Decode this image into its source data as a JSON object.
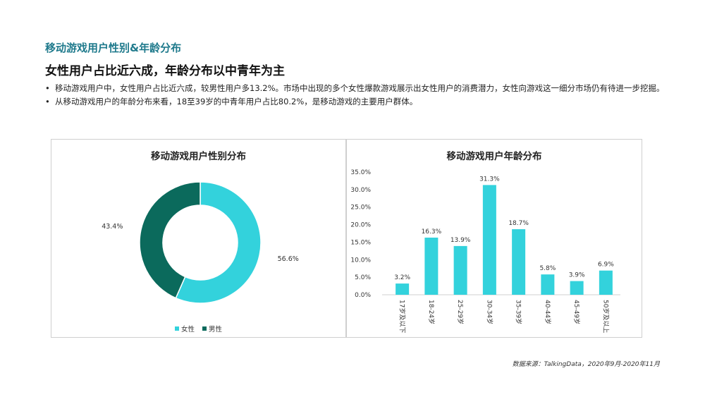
{
  "section_title": "移动游戏用户性别&年龄分布",
  "headline": "女性用户占比近六成，年龄分布以中青年为主",
  "bullets": [
    "移动游戏用户中，女性用户占比近六成，较男性用户多13.2%。市场中出现的多个女性爆款游戏展示出女性用户的消费潜力，女性向游戏这一细分市场仍有待进一步挖掘。",
    "从移动游戏用户的年龄分布来看，18至39岁的中青年用户占比80.2%，是移动游戏的主要用户群体。"
  ],
  "source": "数据来源：TalkingData，2020年9月-2020年11月",
  "chart_data": [
    {
      "type": "pie",
      "title": "移动游戏用户性别分布",
      "categories": [
        "女性",
        "男性"
      ],
      "values": [
        56.6,
        43.4
      ],
      "value_labels": [
        "56.6%",
        "43.4%"
      ],
      "colors": [
        "#33d2dc",
        "#0b6a5c"
      ],
      "legend": "bottom"
    },
    {
      "type": "bar",
      "title": "移动游戏用户年龄分布",
      "categories": [
        "17岁及以下",
        "18-24岁",
        "25-29岁",
        "30-34岁",
        "35-39岁",
        "40-44岁",
        "45-49岁",
        "50岁及以上"
      ],
      "values": [
        3.2,
        16.3,
        13.9,
        31.3,
        18.7,
        5.8,
        3.9,
        6.9
      ],
      "value_labels": [
        "3.2%",
        "16.3%",
        "13.9%",
        "31.3%",
        "18.7%",
        "5.8%",
        "3.9%",
        "6.9%"
      ],
      "yticks": [
        "0.0%",
        "5.0%",
        "10.0%",
        "15.0%",
        "20.0%",
        "25.0%",
        "30.0%",
        "35.0%"
      ],
      "ylim": [
        0,
        35
      ],
      "color": "#33d2dc"
    }
  ]
}
